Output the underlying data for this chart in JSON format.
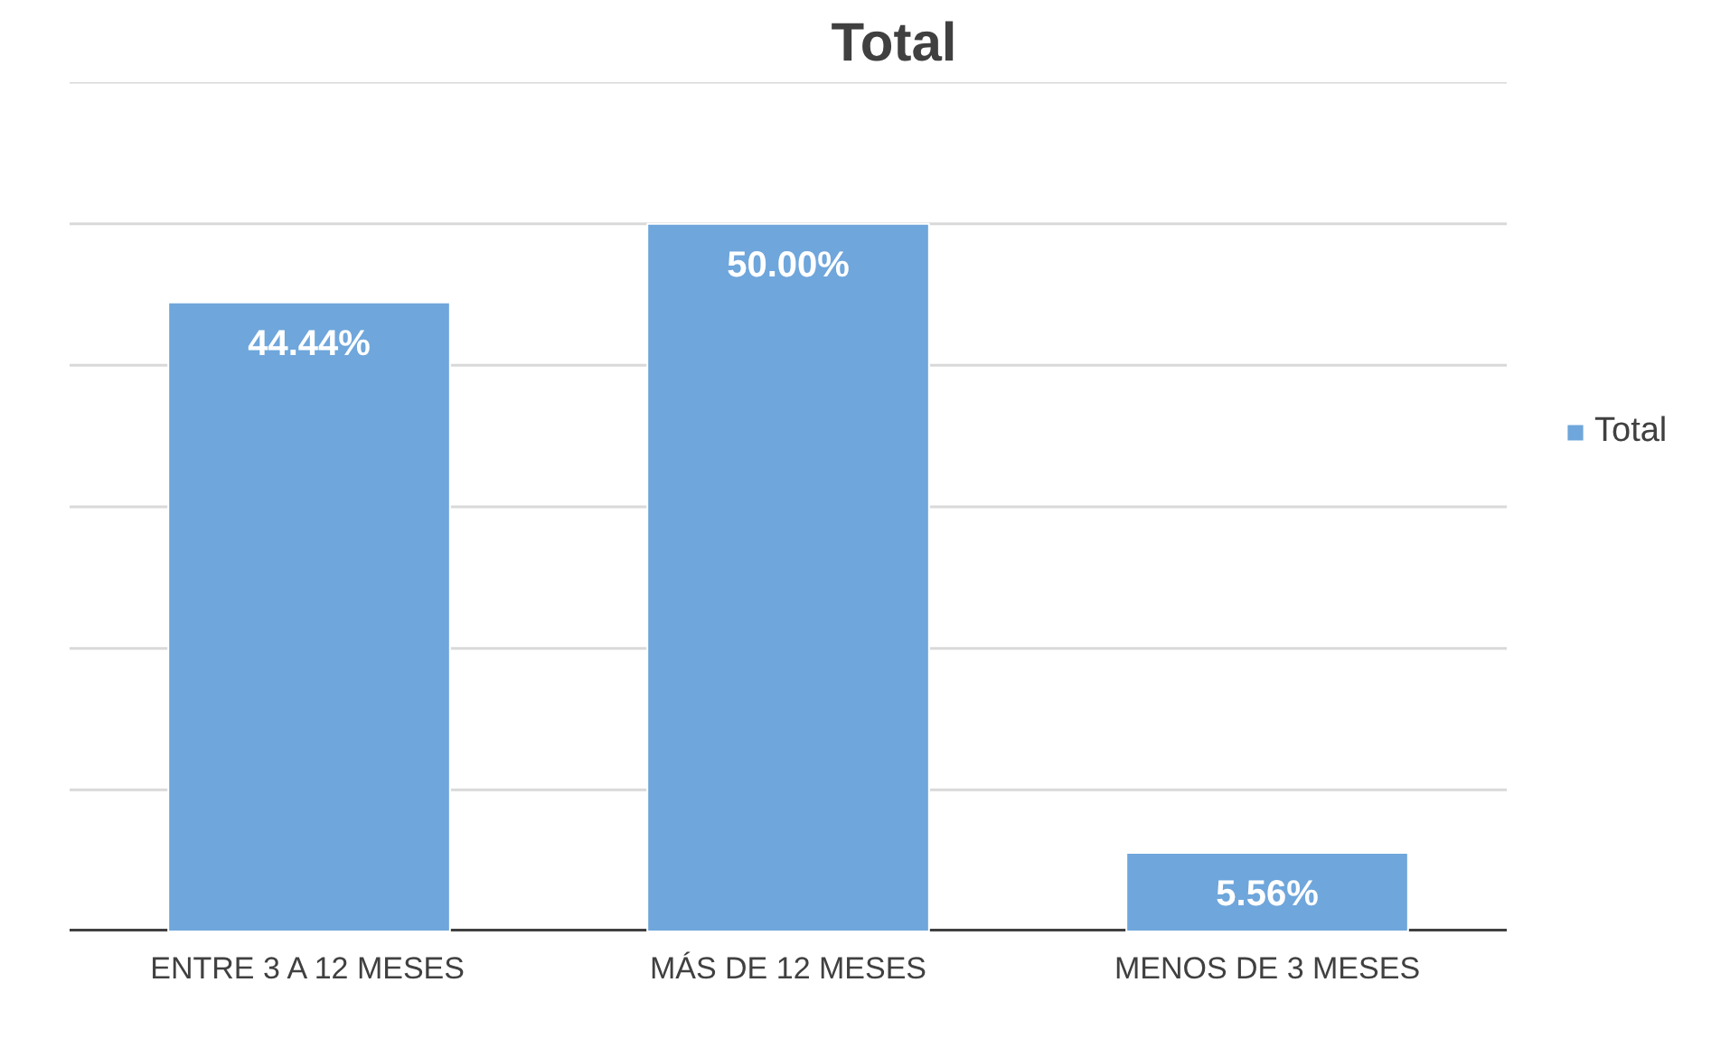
{
  "chart_data": {
    "type": "bar",
    "title": "Total",
    "categories": [
      "ENTRE 3 A 12 MESES",
      "MÁS DE 12 MESES",
      "MENOS DE 3 MESES"
    ],
    "series": [
      {
        "name": "Total",
        "color": "#6fa6db",
        "values": [
          44.44,
          50.0,
          5.56
        ],
        "value_labels": [
          "44.44%",
          "50.00%",
          "5.56%"
        ]
      }
    ],
    "ylim": [
      0,
      60
    ],
    "yticks": [
      {
        "value": 0,
        "label": null
      },
      {
        "value": 10,
        "label": null
      },
      {
        "value": 20,
        "label": null
      },
      {
        "value": 30,
        "label": null
      },
      {
        "value": 40,
        "label": null
      },
      {
        "value": 50,
        "label": null
      },
      {
        "value": 60,
        "label": null
      }
    ],
    "tick_labels": "x",
    "grid": "y",
    "legend": "right"
  }
}
